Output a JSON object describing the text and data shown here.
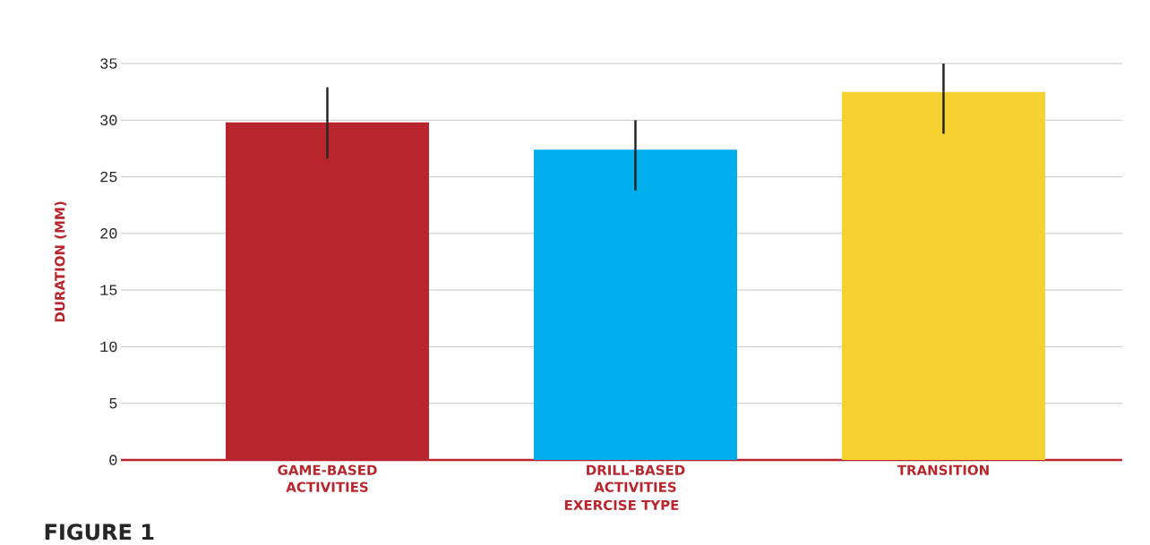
{
  "chart_data": {
    "type": "bar",
    "xlabel": "EXERCISE TYPE",
    "ylabel": "DURATION (MM)",
    "categories": [
      "GAME-BASED ACTIVITIES",
      "DRILL-BASED ACTIVITIES",
      "TRANSITION"
    ],
    "values": [
      29.8,
      27.4,
      32.5
    ],
    "colors": [
      "#b8252d",
      "#00aeeb",
      "#f5d230"
    ],
    "errors": [
      [
        26.6,
        32.9
      ],
      [
        23.8,
        30.0
      ],
      [
        28.8,
        35.0
      ]
    ],
    "ylim": [
      0,
      35
    ],
    "yticks": [
      0,
      5,
      10,
      15,
      20,
      25,
      30,
      35
    ],
    "grid": "y",
    "annotations": [
      "FIGURE 1"
    ]
  }
}
